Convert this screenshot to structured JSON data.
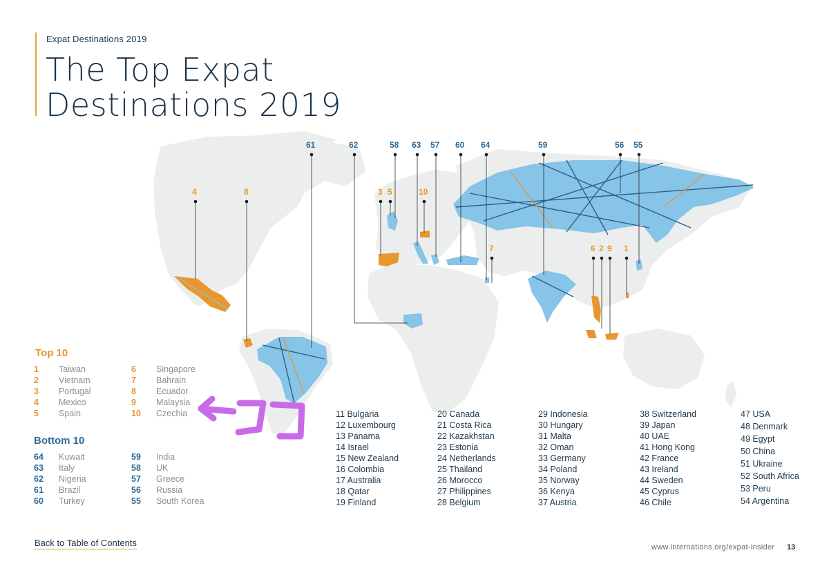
{
  "header": {
    "kicker": "Expat Destinations 2019",
    "title_line1": "The Top Expat",
    "title_line2": "Destinations 2019"
  },
  "map": {
    "colors": {
      "top": "#e8962e",
      "bottom": "#86c4e8",
      "land": "#eceeee",
      "line_blue": "#2f5f86"
    },
    "markers": {
      "top_labels": [
        "4",
        "8",
        "3",
        "5",
        "10",
        "7",
        "6",
        "2",
        "9",
        "1"
      ],
      "bottom_labels": [
        "61",
        "62",
        "58",
        "63",
        "57",
        "60",
        "64",
        "59",
        "56",
        "55"
      ]
    }
  },
  "top10": {
    "heading": "Top 10",
    "left": [
      {
        "rank": "1",
        "name": "Taiwan"
      },
      {
        "rank": "2",
        "name": "Vietnam"
      },
      {
        "rank": "3",
        "name": "Portugal"
      },
      {
        "rank": "4",
        "name": "Mexico"
      },
      {
        "rank": "5",
        "name": "Spain"
      }
    ],
    "right": [
      {
        "rank": "6",
        "name": "Singapore"
      },
      {
        "rank": "7",
        "name": "Bahrain"
      },
      {
        "rank": "8",
        "name": "Ecuador"
      },
      {
        "rank": "9",
        "name": "Malaysia"
      },
      {
        "rank": "10",
        "name": "Czechia"
      }
    ]
  },
  "bottom10": {
    "heading": "Bottom 10",
    "left": [
      {
        "rank": "64",
        "name": "Kuwait"
      },
      {
        "rank": "63",
        "name": "Italy"
      },
      {
        "rank": "62",
        "name": "Nigeria"
      },
      {
        "rank": "61",
        "name": "Brazil"
      },
      {
        "rank": "60",
        "name": "Turkey"
      }
    ],
    "right": [
      {
        "rank": "59",
        "name": "India"
      },
      {
        "rank": "58",
        "name": "UK"
      },
      {
        "rank": "57",
        "name": "Greece"
      },
      {
        "rank": "56",
        "name": "Russia"
      },
      {
        "rank": "55",
        "name": "South Korea"
      }
    ]
  },
  "middle": {
    "col1": [
      "11 Bulgaria",
      "12 Luxembourg",
      "13 Panama",
      "14 Israel",
      "15 New Zealand",
      "16 Colombia",
      "17 Australia",
      "18 Qatar",
      "19 Finland"
    ],
    "col2": [
      "20 Canada",
      "21 Costa Rica",
      "22 Kazakhstan",
      "23 Estonia",
      "24 Netherlands",
      "25 Thailand",
      "26 Morocco",
      "27 Philippines",
      "28 Belgium"
    ],
    "col3": [
      "29 Indonesia",
      "30 Hungary",
      "31 Malta",
      "32 Oman",
      "33 Germany",
      "34 Poland",
      "35 Norway",
      "36 Kenya",
      "37 Austria"
    ],
    "col4": [
      "38 Switzerland",
      "39 Japan",
      "40 UAE",
      "41 Hong Kong",
      "42 France",
      "43 Ireland",
      "44 Sweden",
      "45 Cyprus",
      "46 Chile"
    ],
    "col5": [
      "47 USA",
      "48 Denmark",
      "49 Egypt",
      "50 China",
      "51 Ukraine",
      "52 South Africa",
      "53 Peru",
      "54 Argentina"
    ]
  },
  "overlay": {
    "annotation_color": "#c96be8"
  },
  "footer": {
    "back_link": "Back to Table of Contents",
    "url": "www.internations.org/expat-insider",
    "page_number": "13"
  }
}
